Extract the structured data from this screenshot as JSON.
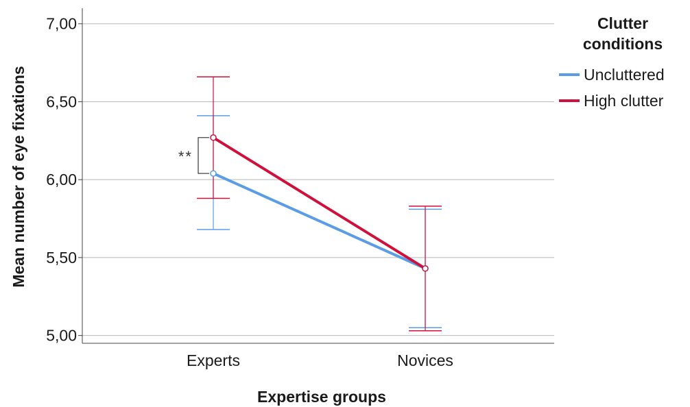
{
  "chart_data": {
    "type": "line",
    "categories": [
      "Experts",
      "Novices"
    ],
    "xlabel": "Expertise groups",
    "ylabel": "Mean number of eye fixations",
    "ylim": [
      4.95,
      7.1
    ],
    "yticks": [
      "5,00",
      "5,50",
      "6,00",
      "6,50",
      "7,00"
    ],
    "ytick_values": [
      5.0,
      5.5,
      6.0,
      6.5,
      7.0
    ],
    "grid": "horizontal",
    "legend": {
      "title_lines": [
        "Clutter",
        "conditions"
      ],
      "placement": "right"
    },
    "series": [
      {
        "name": "Uncluttered",
        "color": "#5a9de6",
        "values": [
          6.04,
          5.43
        ],
        "ci_low": [
          5.68,
          5.05
        ],
        "ci_high": [
          6.41,
          5.81
        ]
      },
      {
        "name": "High clutter",
        "color": "#d0103a",
        "values": [
          6.27,
          5.43
        ],
        "ci_low": [
          5.88,
          5.03
        ],
        "ci_high": [
          6.66,
          5.83
        ]
      }
    ],
    "annotations": [
      {
        "text": "**",
        "category": "Experts",
        "between": [
          "Uncluttered",
          "High clutter"
        ]
      }
    ]
  }
}
